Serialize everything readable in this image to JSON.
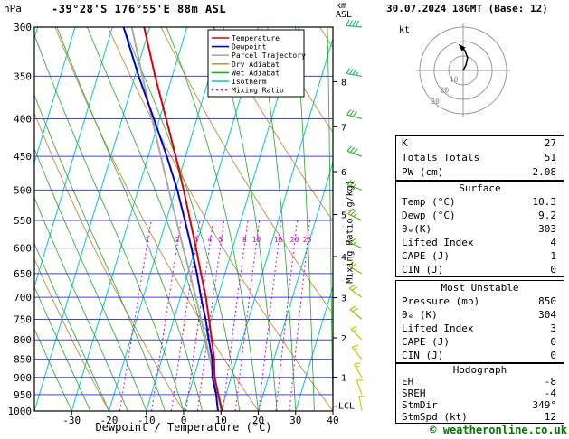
{
  "header": {
    "pressure_unit": "hPa",
    "title": "-39°28'S 176°55'E 88m ASL",
    "km_label": "km",
    "asl_label": "ASL",
    "datetime": "30.07.2024 18GMT (Base: 12)"
  },
  "axes": {
    "xlabel": "Dewpoint / Temperature (°C)",
    "mixing_label": "Mixing Ratio (g/kg)"
  },
  "footer": {
    "credit": "© weatheronline.co.uk"
  },
  "panels": {
    "stats": {
      "rows": [
        [
          "K",
          "27"
        ],
        [
          "Totals Totals",
          "51"
        ],
        [
          "PW (cm)",
          "2.08"
        ]
      ]
    },
    "surface": {
      "title": "Surface",
      "rows": [
        [
          "Temp (°C)",
          "10.3"
        ],
        [
          "Dewp (°C)",
          "9.2"
        ],
        [
          "θₑ(K)",
          "303"
        ],
        [
          "Lifted Index",
          "4"
        ],
        [
          "CAPE (J)",
          "1"
        ],
        [
          "CIN (J)",
          "0"
        ]
      ]
    },
    "most_unstable": {
      "title": "Most Unstable",
      "rows": [
        [
          "Pressure (mb)",
          "850"
        ],
        [
          "θₑ (K)",
          "304"
        ],
        [
          "Lifted Index",
          "3"
        ],
        [
          "CAPE (J)",
          "0"
        ],
        [
          "CIN (J)",
          "0"
        ]
      ]
    },
    "hodograph": {
      "title": "Hodograph",
      "rows": [
        [
          "EH",
          "-8"
        ],
        [
          "SREH",
          "-4"
        ],
        [
          "StmDir",
          "349°"
        ],
        [
          "StmSpd (kt)",
          "12"
        ]
      ]
    }
  },
  "chart_data": {
    "type": "skewt_sounding",
    "title": "-39°28'S 176°55'E 88m ASL",
    "datetime": "30.07.2024 18GMT (Base: 12)",
    "x_range": [
      -40,
      40
    ],
    "pressure_ticks": [
      300,
      350,
      400,
      450,
      500,
      550,
      600,
      650,
      700,
      750,
      800,
      850,
      900,
      950,
      1000
    ],
    "temp_ticks": [
      -30,
      -20,
      -10,
      0,
      10,
      20,
      30,
      40
    ],
    "km_ticks": {
      "values": [
        1,
        2,
        3,
        4,
        5,
        6,
        7,
        8
      ],
      "pressures": [
        899,
        795,
        701,
        616,
        540,
        472,
        410,
        356
      ]
    },
    "isotherms": {
      "min": -70,
      "max": 40,
      "step": 10
    },
    "dry_adiabats": {
      "min": -40,
      "max": 160,
      "step": 20
    },
    "wet_adiabats": {
      "min": -30,
      "max": 40,
      "step": 5
    },
    "mixing_ratio_values": [
      1,
      2,
      3,
      4,
      5,
      8,
      10,
      15,
      20,
      25
    ],
    "mixing_label_pressure": 592,
    "lcl_label": "LCL",
    "lcl_pressure": 985,
    "legend": [
      {
        "label": "Temperature",
        "color": "#dd0000"
      },
      {
        "label": "Dewpoint",
        "color": "#0000cc"
      },
      {
        "label": "Parcel Trajectory",
        "color": "#aaaaaa"
      },
      {
        "label": "Dry Adiabat",
        "color": "#c8964b"
      },
      {
        "label": "Wet Adiabat",
        "color": "#22aa22"
      },
      {
        "label": "Isotherm",
        "color": "#00cccc"
      },
      {
        "label": "Mixing Ratio",
        "color": "#cc00cc",
        "dash": true
      }
    ],
    "colors": {
      "temperature": "#dd0000",
      "dewpoint": "#0000cc",
      "parcel": "#aaaaaa",
      "dry_adiabat": "#c8964b",
      "wet_adiabat": "#22aa22",
      "isotherm": "#00cccc",
      "mixing_ratio": "#cc00cc",
      "grid": "#4444cc"
    },
    "sounding": {
      "pressure": [
        1000,
        950,
        900,
        850,
        800,
        750,
        700,
        650,
        600,
        550,
        500,
        450,
        400,
        350,
        300
      ],
      "temperature": [
        10.3,
        8.0,
        5.6,
        4.0,
        1.8,
        -0.6,
        -3.2,
        -6.4,
        -9.8,
        -13.6,
        -17.8,
        -22.6,
        -28.2,
        -34.6,
        -41.5
      ],
      "dewpoint": [
        9.2,
        7.4,
        5.0,
        3.5,
        1.0,
        -1.5,
        -4.5,
        -7.5,
        -11.0,
        -15.0,
        -19.5,
        -25.0,
        -31.5,
        -39.0,
        -47.0
      ],
      "parcel": [
        10.3,
        7.9,
        5.4,
        2.9,
        0.2,
        -2.7,
        -5.9,
        -9.4,
        -13.2,
        -17.3,
        -21.8,
        -26.6,
        -32.0,
        -38.0,
        -44.8
      ]
    },
    "wind_barbs": [
      {
        "p": 1000,
        "spd": 10,
        "dir": 350,
        "color": "#cccc00"
      },
      {
        "p": 950,
        "spd": 10,
        "dir": 340,
        "color": "#cccc00"
      },
      {
        "p": 900,
        "spd": 15,
        "dir": 330,
        "color": "#cccc00"
      },
      {
        "p": 850,
        "spd": 15,
        "dir": 320,
        "color": "#bbcc00"
      },
      {
        "p": 800,
        "spd": 15,
        "dir": 315,
        "color": "#bbcc00"
      },
      {
        "p": 750,
        "spd": 20,
        "dir": 310,
        "color": "#99c400"
      },
      {
        "p": 700,
        "spd": 20,
        "dir": 305,
        "color": "#99c400"
      },
      {
        "p": 650,
        "spd": 20,
        "dir": 300,
        "color": "#99c400"
      },
      {
        "p": 600,
        "spd": 25,
        "dir": 295,
        "color": "#66bb22"
      },
      {
        "p": 550,
        "spd": 25,
        "dir": 295,
        "color": "#66bb22"
      },
      {
        "p": 500,
        "spd": 25,
        "dir": 290,
        "color": "#66bb22"
      },
      {
        "p": 450,
        "spd": 30,
        "dir": 290,
        "color": "#33b544"
      },
      {
        "p": 400,
        "spd": 30,
        "dir": 285,
        "color": "#33b544"
      },
      {
        "p": 350,
        "spd": 35,
        "dir": 280,
        "color": "#22bb77"
      },
      {
        "p": 300,
        "spd": 40,
        "dir": 275,
        "color": "#22bb77"
      }
    ],
    "hodograph": {
      "unit_label": "kt",
      "rings": [
        10,
        20,
        30
      ],
      "trace": [
        [
          0,
          0
        ],
        [
          2,
          4
        ],
        [
          3,
          9
        ],
        [
          1,
          14
        ],
        [
          -2,
          17
        ]
      ]
    }
  }
}
